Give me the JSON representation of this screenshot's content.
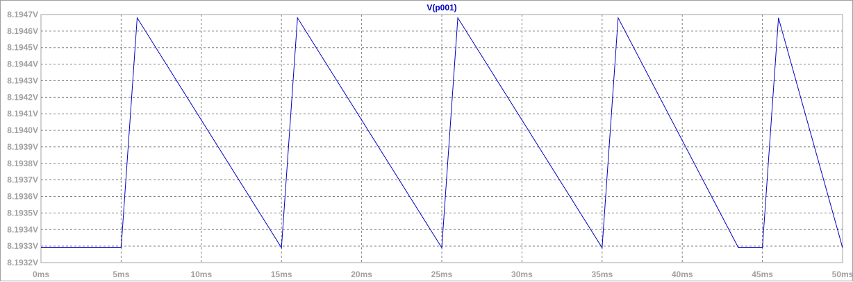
{
  "chart_data": {
    "type": "line",
    "title": "V(p001)",
    "xlabel": "",
    "ylabel": "",
    "xlim": [
      0,
      50
    ],
    "ylim": [
      8.1932,
      8.1947
    ],
    "x_ticks": [
      0,
      5,
      10,
      15,
      20,
      25,
      30,
      35,
      40,
      45,
      50
    ],
    "x_tick_labels": [
      "0ms",
      "5ms",
      "10ms",
      "15ms",
      "20ms",
      "25ms",
      "30ms",
      "35ms",
      "40ms",
      "45ms",
      "50ms"
    ],
    "y_ticks": [
      8.1932,
      8.1933,
      8.1934,
      8.1935,
      8.1936,
      8.1937,
      8.1938,
      8.1939,
      8.194,
      8.1941,
      8.1942,
      8.1943,
      8.1944,
      8.1945,
      8.1946,
      8.1947
    ],
    "y_tick_labels": [
      "8.1932V",
      "8.1933V",
      "8.1934V",
      "8.1935V",
      "8.1936V",
      "8.1937V",
      "8.1938V",
      "8.1939V",
      "8.1940V",
      "8.1941V",
      "8.1942V",
      "8.1943V",
      "8.1944V",
      "8.1945V",
      "8.1946V",
      "8.1947V"
    ],
    "grid": true,
    "series": [
      {
        "name": "V(p001)",
        "color": "#0000c0",
        "x": [
          0,
          5.0,
          6.0,
          15.0,
          16.0,
          25.0,
          26.0,
          35.0,
          36.0,
          43.5,
          45.0,
          46.0,
          50.0
        ],
        "y": [
          8.19329,
          8.19329,
          8.19468,
          8.19329,
          8.19468,
          8.19329,
          8.19468,
          8.19329,
          8.19468,
          8.19329,
          8.19329,
          8.19468,
          8.19329
        ]
      }
    ]
  }
}
